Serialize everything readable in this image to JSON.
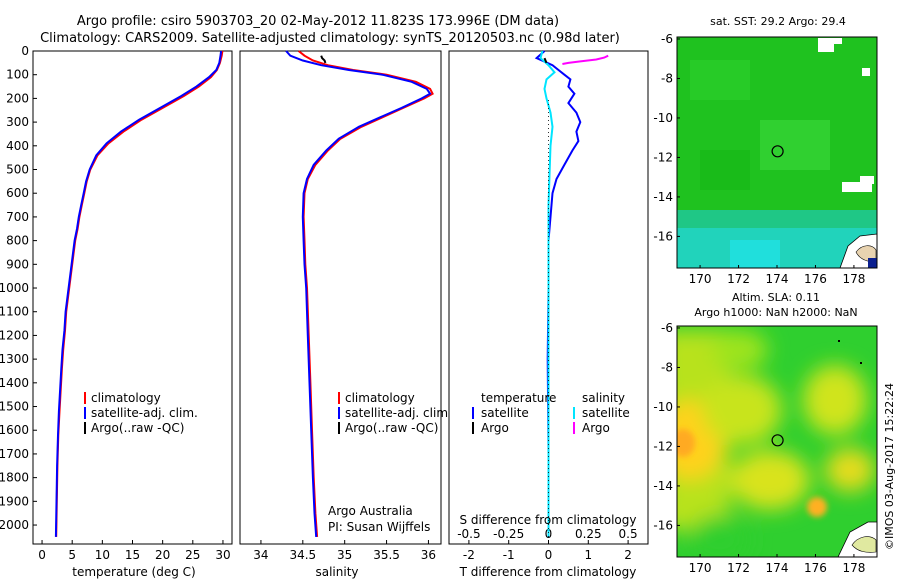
{
  "header": {
    "line1": "Argo profile: csiro 5903703_20 02-May-2012 11.823S 173.996E (DM data)",
    "line2": "Climatology: CARS2009. Satellite-adjusted climatology: synTS_20120503.nc (0.98d later)"
  },
  "footer_note": "©IMOS 03-Aug-2017 15:22:24",
  "credit": {
    "line1": "Argo Australia",
    "line2": "PI: Susan Wijffels"
  },
  "colors": {
    "climatology": "#ff0000",
    "satellite": "#0000ff",
    "argo": "#000000",
    "argo_salinity": "#ff00ff",
    "sat_salinity_diff": "#00e5ff"
  },
  "chart_data": [
    {
      "type": "line",
      "id": "temperature",
      "xlabel": "temperature (deg C)",
      "ylabel": "",
      "xlim": [
        -1.5,
        31.5
      ],
      "ylim": [
        2080,
        0
      ],
      "xticks": [
        0,
        5,
        10,
        15,
        20,
        25,
        30
      ],
      "yticks": [
        0,
        100,
        200,
        300,
        400,
        500,
        600,
        700,
        800,
        900,
        1000,
        1100,
        1200,
        1300,
        1400,
        1500,
        1600,
        1700,
        1800,
        1900,
        2000
      ],
      "legend": [
        "climatology",
        "satellite-adj. clim.",
        "Argo(..raw -QC)"
      ],
      "legend_position": "lower-center",
      "series": [
        {
          "name": "climatology",
          "color": "#ff0000",
          "x": [
            29.9,
            29.8,
            29.5,
            29.0,
            28.0,
            26.0,
            23.5,
            20.0,
            16.5,
            13.5,
            11.0,
            9.2,
            8.0,
            7.4,
            7.0,
            6.6,
            6.2,
            5.9,
            5.5,
            5.2,
            4.9,
            4.6,
            4.3,
            4.0,
            3.8,
            3.5,
            3.3,
            3.1,
            2.9,
            2.7,
            2.55,
            2.45,
            2.35
          ],
          "y": [
            0,
            20,
            50,
            80,
            110,
            150,
            190,
            240,
            290,
            340,
            390,
            440,
            500,
            550,
            600,
            650,
            700,
            750,
            800,
            860,
            920,
            980,
            1040,
            1100,
            1180,
            1260,
            1340,
            1430,
            1520,
            1620,
            1750,
            1900,
            2050
          ]
        },
        {
          "name": "satellite-adj. clim.",
          "color": "#0000ff",
          "x": [
            29.7,
            29.6,
            29.4,
            28.9,
            27.7,
            25.6,
            23.1,
            19.6,
            16.1,
            13.1,
            10.7,
            9.0,
            7.9,
            7.3,
            6.9,
            6.5,
            6.1,
            5.8,
            5.4,
            5.1,
            4.8,
            4.5,
            4.2,
            3.9,
            3.7,
            3.4,
            3.2,
            3.0,
            2.8,
            2.65,
            2.5,
            2.4,
            2.3
          ],
          "y": [
            0,
            20,
            50,
            80,
            110,
            150,
            190,
            240,
            290,
            340,
            390,
            440,
            500,
            550,
            600,
            650,
            700,
            750,
            800,
            860,
            920,
            980,
            1040,
            1100,
            1180,
            1260,
            1340,
            1430,
            1520,
            1620,
            1750,
            1900,
            2050
          ]
        }
      ]
    },
    {
      "type": "line",
      "id": "salinity",
      "xlabel": "salinity",
      "ylabel": "",
      "xlim": [
        33.75,
        36.15
      ],
      "ylim": [
        2080,
        0
      ],
      "xticks": [
        34,
        34.5,
        35,
        35.5,
        36
      ],
      "yticks": [],
      "legend": [
        "climatology",
        "satellite-adj. clim.",
        "Argo(..raw -QC)"
      ],
      "legend_position": "lower-center",
      "series": [
        {
          "name": "climatology",
          "color": "#ff0000",
          "x": [
            34.45,
            34.52,
            34.62,
            34.8,
            35.1,
            35.5,
            35.85,
            36.02,
            36.05,
            35.95,
            35.7,
            35.45,
            35.2,
            34.95,
            34.8,
            34.65,
            34.56,
            34.52,
            34.51,
            34.52,
            34.53,
            34.55,
            34.57,
            34.59,
            34.61,
            34.63,
            34.65,
            34.67
          ],
          "y": [
            0,
            20,
            40,
            60,
            80,
            100,
            130,
            160,
            180,
            200,
            240,
            280,
            320,
            370,
            420,
            480,
            540,
            600,
            700,
            800,
            900,
            1000,
            1200,
            1400,
            1600,
            1800,
            1950,
            2050
          ]
        },
        {
          "name": "satellite-adj. clim.",
          "color": "#0000ff",
          "x": [
            34.3,
            34.35,
            34.5,
            34.72,
            35.05,
            35.45,
            35.8,
            35.98,
            36.02,
            35.92,
            35.68,
            35.42,
            35.17,
            34.93,
            34.78,
            34.63,
            34.55,
            34.51,
            34.5,
            34.51,
            34.52,
            34.54,
            34.56,
            34.58,
            34.6,
            34.62,
            34.64,
            34.66
          ],
          "y": [
            0,
            20,
            40,
            60,
            80,
            100,
            130,
            160,
            180,
            200,
            240,
            280,
            320,
            370,
            420,
            480,
            540,
            600,
            700,
            800,
            900,
            1000,
            1200,
            1400,
            1600,
            1800,
            1950,
            2050
          ]
        },
        {
          "name": "Argo(..raw -QC)",
          "color": "#000000",
          "x": [
            34.72,
            34.73,
            34.76,
            34.77
          ],
          "y": [
            20,
            30,
            40,
            50
          ]
        }
      ]
    },
    {
      "type": "line",
      "id": "difference",
      "xlabel": "T difference from climatology",
      "xlabel_top": "S difference from climatology",
      "ylabel": "",
      "xlim": [
        -2.5,
        2.5
      ],
      "ylim": [
        2080,
        0
      ],
      "xticks": [
        -2,
        -1,
        0,
        1,
        2
      ],
      "xticks_s": [
        "-0.5",
        "-0.25",
        "0",
        "0.25",
        "0.5"
      ],
      "yticks": [],
      "legend_temperature_title": "temperature",
      "legend_salinity_title": "salinity",
      "legend_temperature": [
        "satellite",
        "Argo"
      ],
      "legend_salinity": [
        "satellite",
        "Argo"
      ],
      "series": [
        {
          "name": "satellite",
          "group": "temperature",
          "color": "#0000ff",
          "x": [
            -0.1,
            -0.3,
            0.1,
            0.25,
            0.4,
            0.55,
            0.5,
            0.65,
            0.5,
            0.7,
            0.8,
            0.7,
            0.75,
            0.6,
            0.4,
            0.2,
            0.1,
            0.05,
            0.0,
            0.0,
            -0.02,
            0.0,
            0.0
          ],
          "y": [
            0,
            30,
            60,
            80,
            100,
            120,
            150,
            180,
            220,
            260,
            300,
            340,
            380,
            420,
            480,
            540,
            600,
            700,
            800,
            1000,
            1300,
            1700,
            2050
          ]
        },
        {
          "name": "satellite",
          "group": "salinity",
          "color": "#00e5ff",
          "x": [
            -0.15,
            -0.2,
            0.0,
            0.15,
            -0.05,
            -0.1,
            -0.05,
            0.05,
            0.1,
            0.05,
            0.03,
            0.0,
            0.0,
            0.0,
            0.0
          ],
          "y": [
            0,
            30,
            60,
            90,
            120,
            160,
            200,
            260,
            320,
            400,
            500,
            650,
            900,
            1400,
            2050
          ]
        },
        {
          "name": "Argo",
          "group": "salinity",
          "color": "#ff00ff",
          "x": [
            1.5,
            1.4,
            1.2,
            0.8,
            0.5,
            0.35
          ],
          "y": [
            20,
            28,
            36,
            44,
            50,
            55
          ]
        },
        {
          "name": "Argo",
          "group": "temperature",
          "color": "#000000",
          "x": [
            -0.1,
            -0.05
          ],
          "y": [
            30,
            50
          ]
        }
      ]
    },
    {
      "type": "heatmap",
      "id": "sst_map",
      "title": "sat. SST: 29.2 Argo: 29.4",
      "xlim": [
        168.8,
        179.2
      ],
      "ylim": [
        -17.6,
        -5.9
      ],
      "xticks": [
        170,
        172,
        174,
        176,
        178
      ],
      "yticks": [
        -6,
        -8,
        -10,
        -12,
        -14,
        -16
      ],
      "marker": {
        "lon": 173.996,
        "lat": -11.823
      }
    },
    {
      "type": "heatmap",
      "id": "sla_map",
      "title": "Altim. SLA: 0.11",
      "subtitle": "Argo h1000: NaN h2000: NaN",
      "xlim": [
        168.8,
        179.2
      ],
      "ylim": [
        -17.6,
        -5.9
      ],
      "xticks": [
        170,
        172,
        174,
        176,
        178
      ],
      "yticks": [
        -6,
        -8,
        -10,
        -12,
        -14,
        -16
      ],
      "marker": {
        "lon": 173.996,
        "lat": -11.823
      }
    }
  ]
}
